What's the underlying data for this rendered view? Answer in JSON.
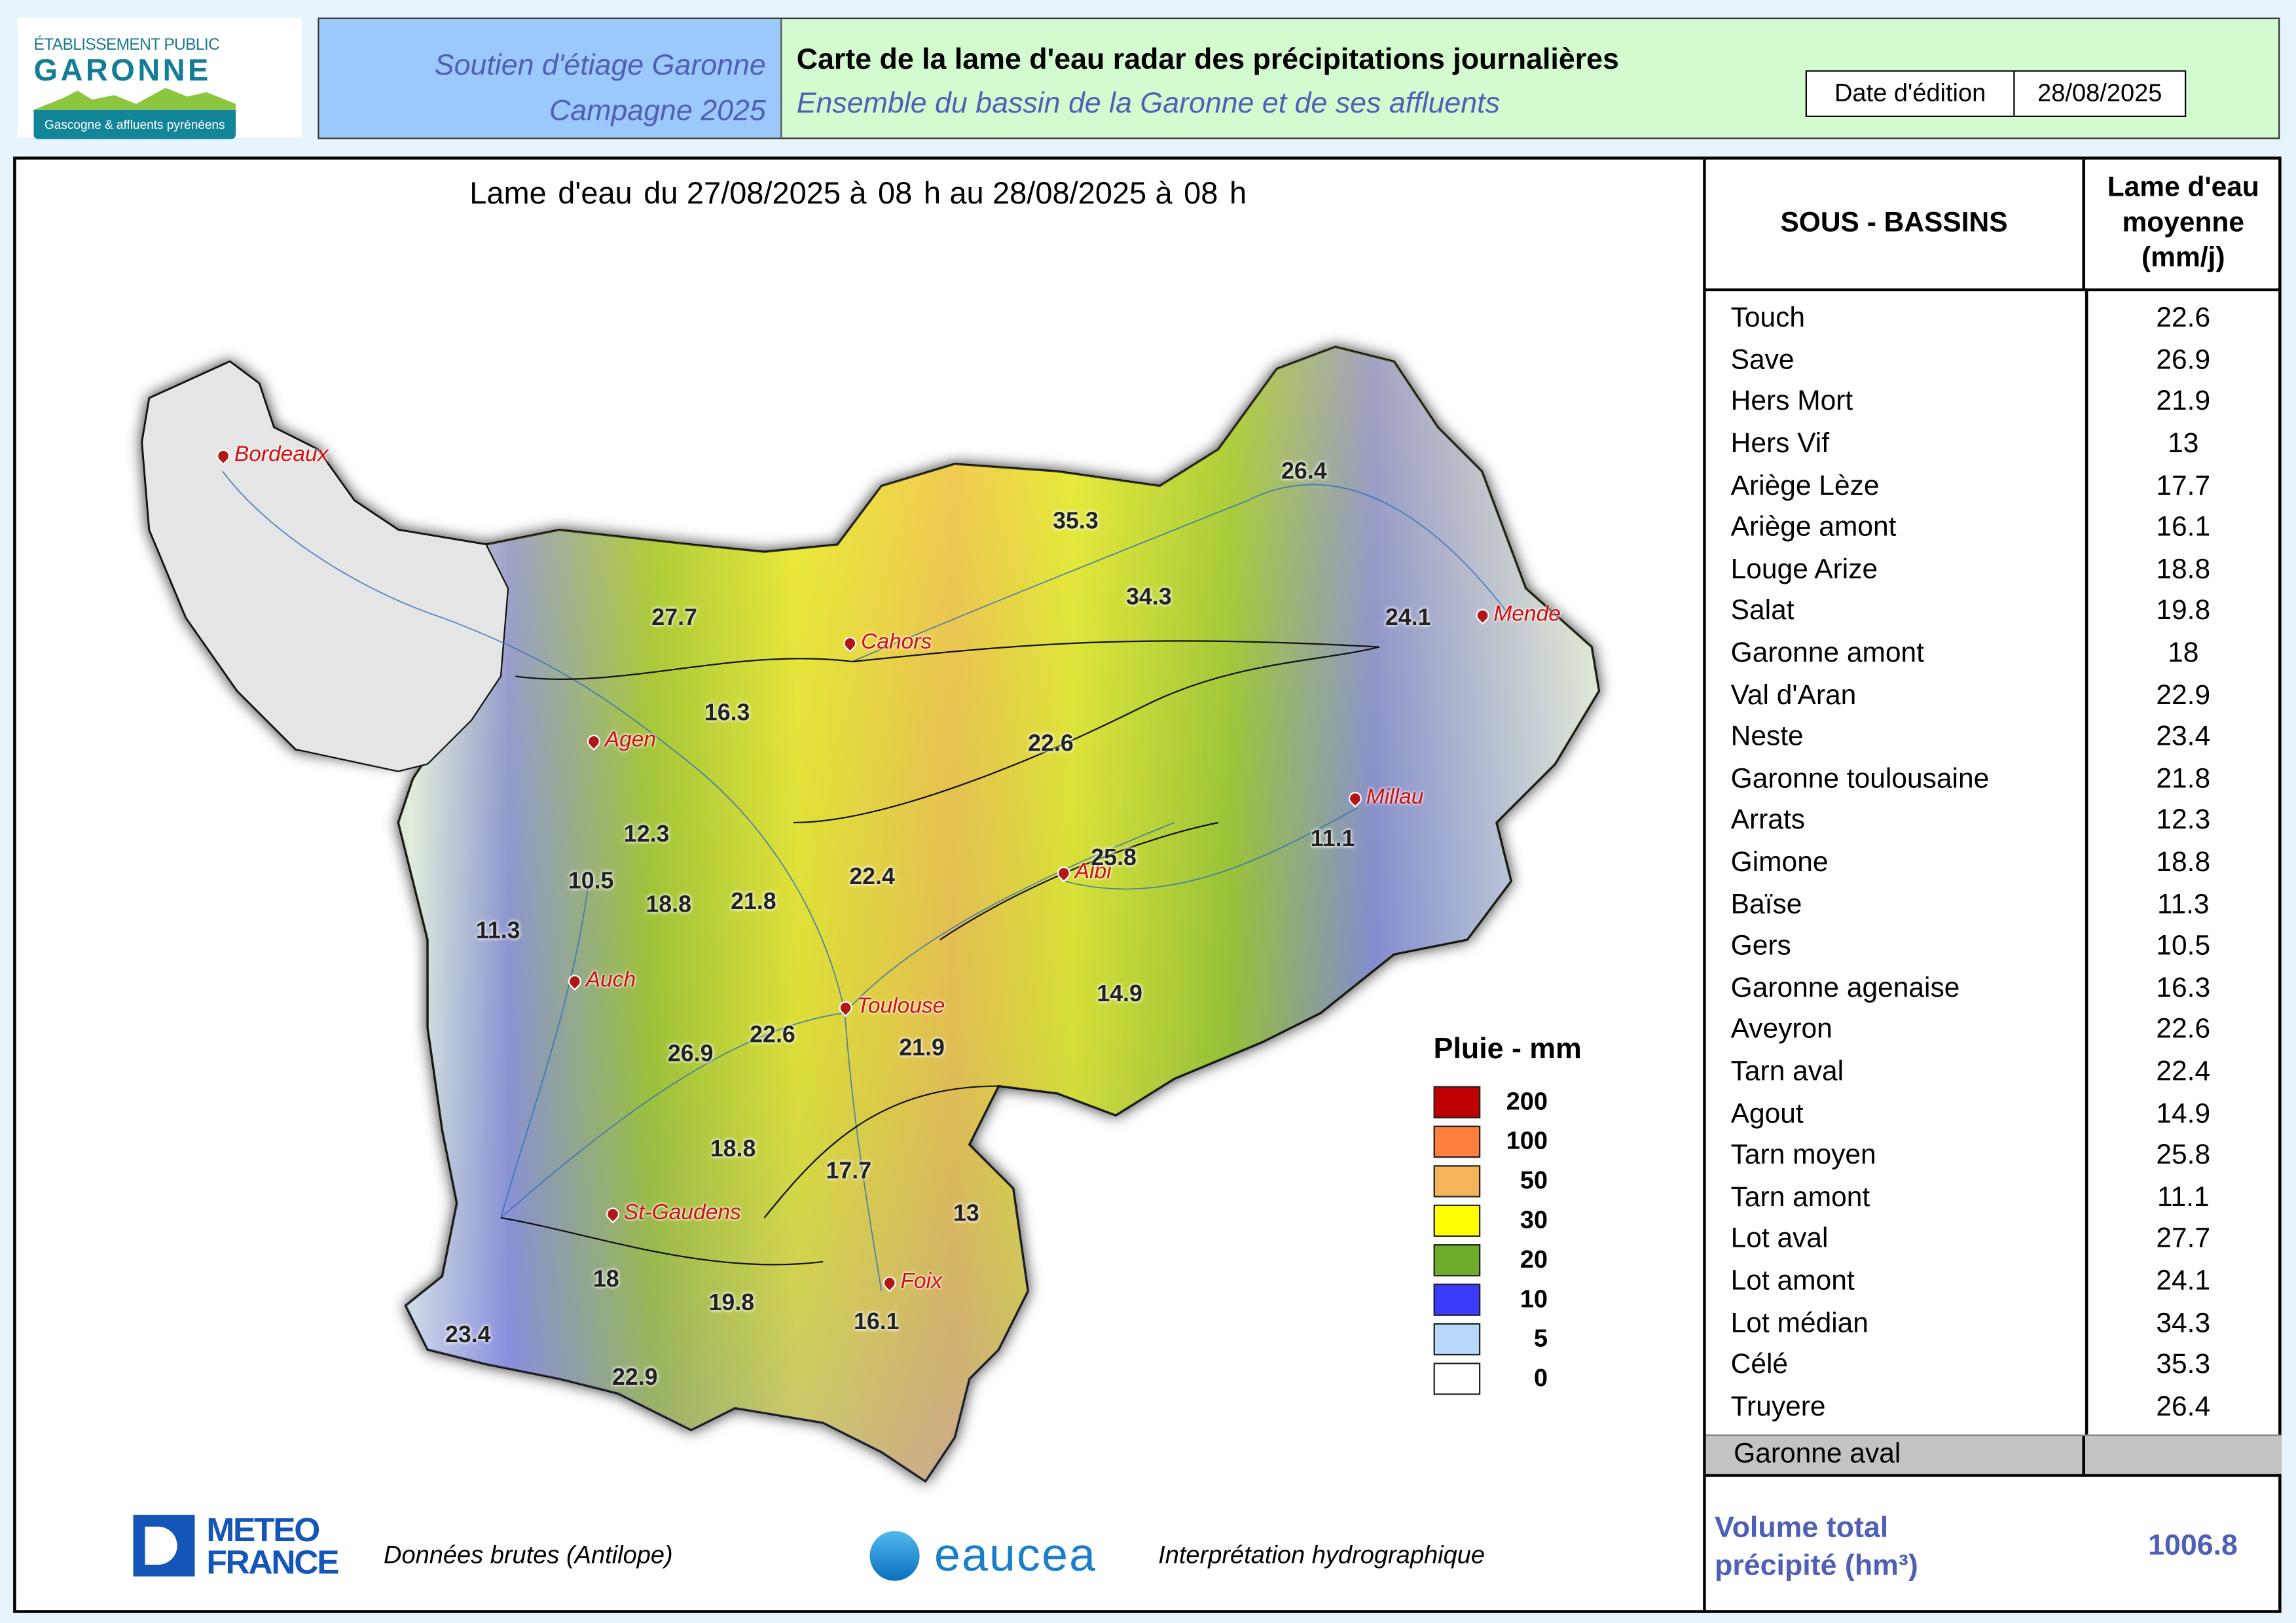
{
  "logo": {
    "line1": "ÉTABLISSEMENT PUBLIC",
    "line2": "GARONNE",
    "line3": "Gascogne & affluents pyrénéens"
  },
  "header": {
    "left_line1": "Soutien d'étiage Garonne",
    "left_line2": "Campagne 2025",
    "title": "Carte de la lame d'eau radar des précipitations journalières",
    "subtitle": "Ensemble du bassin de la Garonne et de ses affluents",
    "date_label": "Date d'édition",
    "date_value": "28/08/2025"
  },
  "map": {
    "title": {
      "prefix": "Lame d'eau du",
      "start_date": "27/08/2025",
      "start_hour": "à 08 h",
      "mid": "au",
      "end_date": "28/08/2025",
      "end_hour": "à 08 h"
    },
    "cities": [
      "Bordeaux",
      "Cahors",
      "Mende",
      "Agen",
      "Millau",
      "Albi",
      "Auch",
      "Toulouse",
      "St-Gaudens",
      "Foix"
    ],
    "values": [
      "26.4",
      "35.3",
      "34.3",
      "27.7",
      "24.1",
      "16.3",
      "22.6",
      "12.3",
      "10.5",
      "18.8",
      "21.8",
      "22.4",
      "25.8",
      "11.1",
      "11.3",
      "14.9",
      "26.9",
      "22.6",
      "21.9",
      "18.8",
      "17.7",
      "13",
      "18",
      "19.8",
      "16.1",
      "23.4",
      "22.9"
    ],
    "legend": {
      "title": "Pluie - mm",
      "items": [
        {
          "label": "200",
          "color": "#c00000"
        },
        {
          "label": "100",
          "color": "#ff7f3f"
        },
        {
          "label": "50",
          "color": "#f5b35a"
        },
        {
          "label": "30",
          "color": "#ffff00"
        },
        {
          "label": "20",
          "color": "#6fab2a"
        },
        {
          "label": "10",
          "color": "#3c3cff"
        },
        {
          "label": "5",
          "color": "#b9d9fb"
        },
        {
          "label": "0",
          "color": "#ffffff"
        }
      ]
    }
  },
  "table": {
    "col1": "SOUS - BASSINS",
    "col2_line1": "Lame d'eau",
    "col2_line2": "moyenne",
    "col2_line3": "(mm/j)",
    "rows": [
      {
        "name": "Touch",
        "value": "22.6"
      },
      {
        "name": "Save",
        "value": "26.9"
      },
      {
        "name": "Hers Mort",
        "value": "21.9"
      },
      {
        "name": "Hers Vif",
        "value": "13"
      },
      {
        "name": "Ariège Lèze",
        "value": "17.7"
      },
      {
        "name": "Ariège amont",
        "value": "16.1"
      },
      {
        "name": "Louge Arize",
        "value": "18.8"
      },
      {
        "name": "Salat",
        "value": "19.8"
      },
      {
        "name": "Garonne amont",
        "value": "18"
      },
      {
        "name": "Val d'Aran",
        "value": "22.9"
      },
      {
        "name": "Neste",
        "value": "23.4"
      },
      {
        "name": "Garonne toulousaine",
        "value": "21.8"
      },
      {
        "name": "Arrats",
        "value": "12.3"
      },
      {
        "name": "Gimone",
        "value": "18.8"
      },
      {
        "name": "Baïse",
        "value": "11.3"
      },
      {
        "name": "Gers",
        "value": "10.5"
      },
      {
        "name": "Garonne agenaise",
        "value": "16.3"
      },
      {
        "name": "Aveyron",
        "value": "22.6"
      },
      {
        "name": "Tarn aval",
        "value": "22.4"
      },
      {
        "name": "Agout",
        "value": "14.9"
      },
      {
        "name": "Tarn moyen",
        "value": "25.8"
      },
      {
        "name": "Tarn amont",
        "value": "11.1"
      },
      {
        "name": "Lot aval",
        "value": "27.7"
      },
      {
        "name": "Lot amont",
        "value": "24.1"
      },
      {
        "name": "Lot médian",
        "value": "34.3"
      },
      {
        "name": "Célé",
        "value": "35.3"
      },
      {
        "name": "Truyere",
        "value": "26.4"
      }
    ],
    "aval_row": {
      "name": "Garonne aval",
      "value": ""
    },
    "volume_label_line1": "Volume total",
    "volume_label_line2": "précipité (hm³)",
    "volume_value": "1006.8"
  },
  "footer": {
    "meteo_line1": "METEO",
    "meteo_line2": "FRANCE",
    "meteo_note": "Données brutes (Antilope)",
    "eaucea": "eaucea",
    "eaucea_note": "Interprétation hydrographique"
  }
}
